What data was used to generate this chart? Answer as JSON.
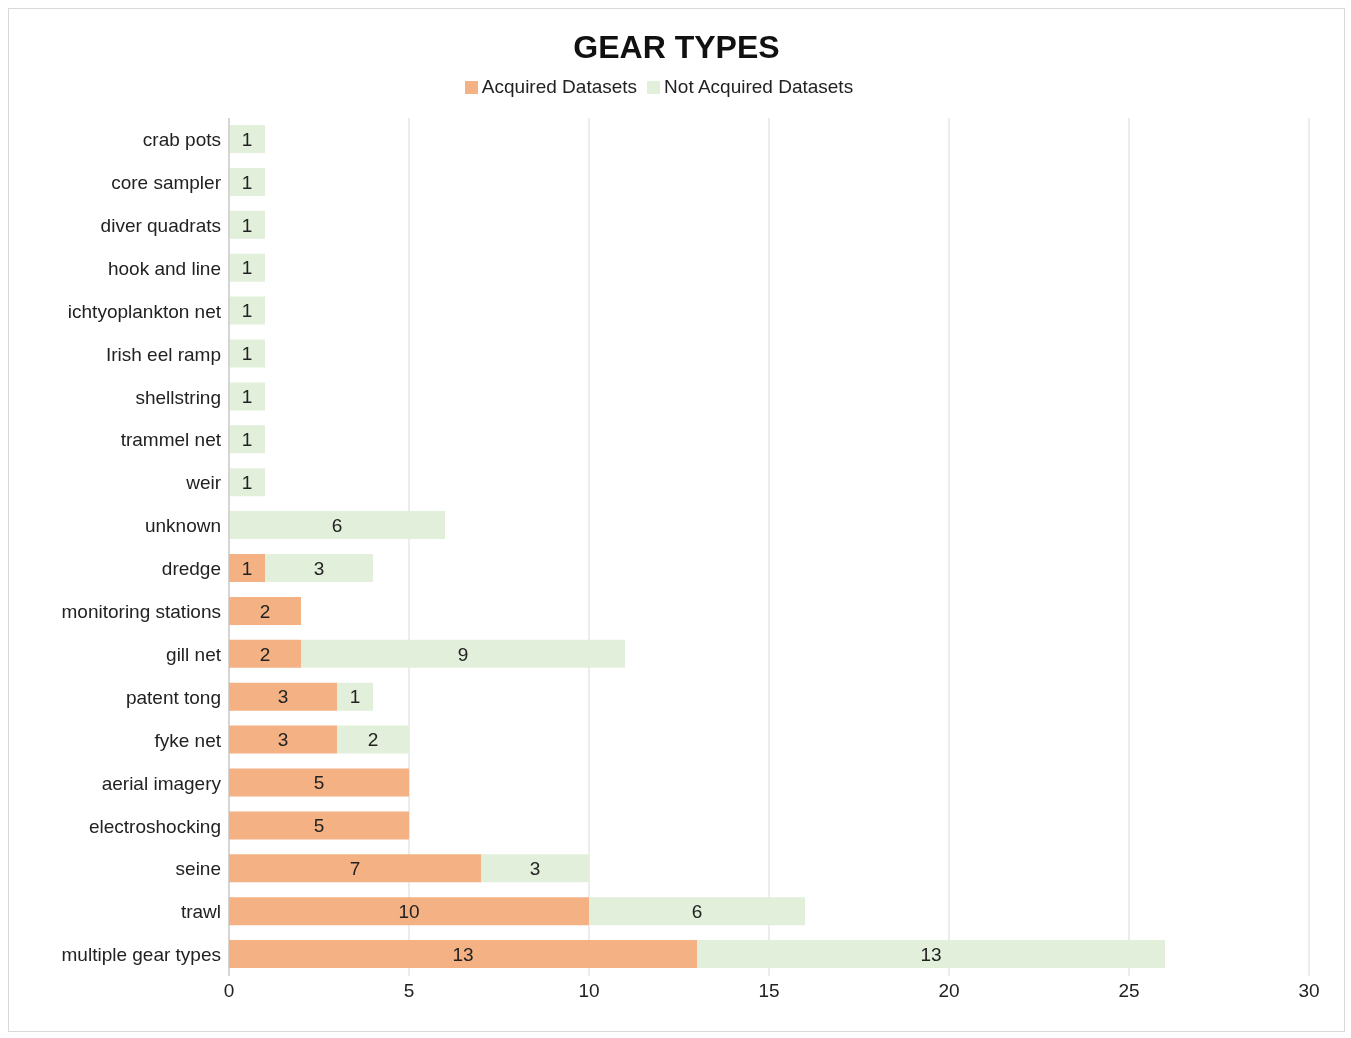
{
  "chart_data": {
    "type": "bar",
    "title": "GEAR TYPES",
    "orientation": "horizontal",
    "stacked": true,
    "data_labels": true,
    "grid": "x",
    "legend": "top",
    "categories": [
      "crab pots",
      "core sampler",
      "diver quadrats",
      "hook and line",
      "ichtyoplankton net",
      "Irish eel ramp",
      "shellstring",
      "trammel net",
      "weir",
      "unknown",
      "dredge",
      "monitoring stations",
      "gill net",
      "patent tong",
      "fyke net",
      "aerial imagery",
      "electroshocking",
      "seine",
      "trawl",
      "multiple gear types"
    ],
    "series": [
      {
        "name": "Acquired Datasets",
        "color": "#f4b183",
        "values": [
          null,
          null,
          null,
          null,
          null,
          null,
          null,
          null,
          null,
          null,
          1,
          2,
          2,
          3,
          3,
          5,
          5,
          7,
          10,
          13
        ]
      },
      {
        "name": "Not Acquired Datasets",
        "color": "#e2efda",
        "values": [
          1,
          1,
          1,
          1,
          1,
          1,
          1,
          1,
          1,
          6,
          3,
          null,
          9,
          1,
          2,
          null,
          null,
          3,
          6,
          13
        ]
      }
    ],
    "xlim": [
      0,
      30
    ],
    "xticks": [
      0,
      5,
      10,
      15,
      20,
      25,
      30
    ]
  }
}
